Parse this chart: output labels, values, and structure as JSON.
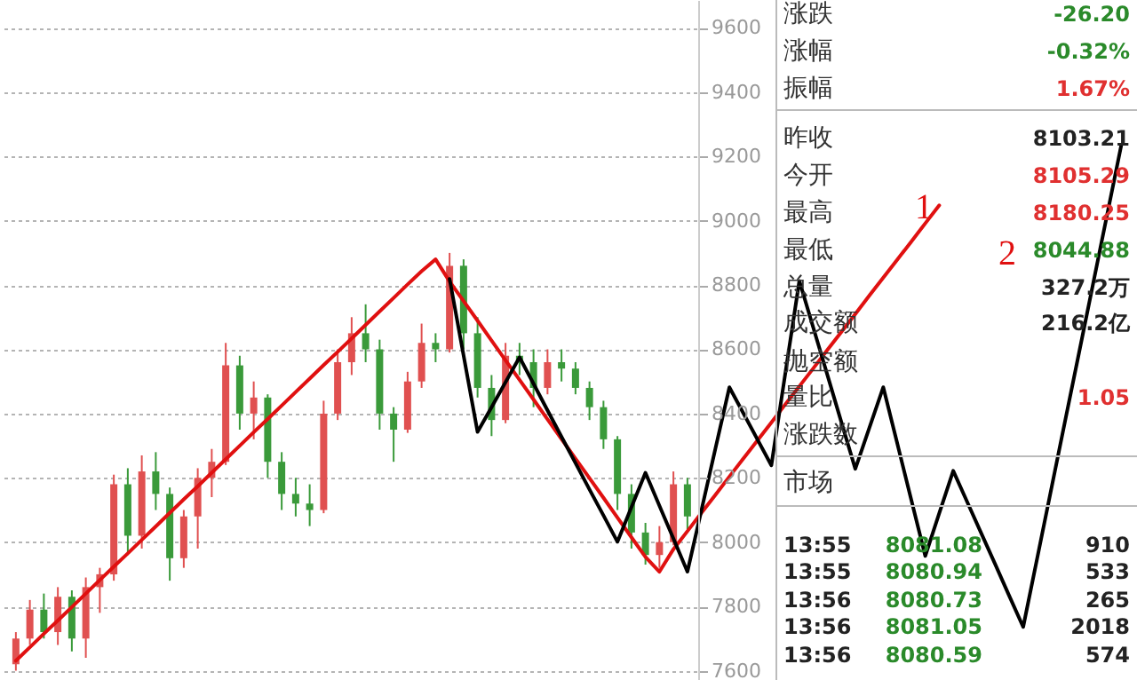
{
  "chart_data": {
    "type": "candlestick",
    "ylim": [
      7571,
      9687
    ],
    "yticks": [
      7600,
      7800,
      8000,
      8200,
      8400,
      8600,
      8800,
      9000,
      9200,
      9400,
      9600
    ],
    "grid": "y",
    "tick_labels": "y",
    "categories": [
      null,
      null,
      null,
      null,
      null,
      null,
      null,
      null,
      null,
      null,
      null,
      null,
      null,
      null,
      null,
      null,
      null,
      null,
      null,
      null,
      null,
      null,
      null,
      null,
      null,
      null,
      null,
      null,
      null,
      null,
      null,
      null,
      null,
      null,
      null,
      null,
      null,
      null,
      null,
      null,
      null,
      null,
      null,
      null,
      null,
      null,
      null,
      null,
      null,
      null,
      null,
      null,
      null,
      null,
      null,
      null,
      null,
      null,
      null,
      null,
      null,
      null,
      null,
      null,
      null,
      null,
      null,
      null,
      null,
      null,
      null,
      null,
      null,
      null,
      null,
      null,
      null,
      null,
      null,
      null
    ],
    "ohlc": [
      [
        7620,
        7720,
        7600,
        7700
      ],
      [
        7700,
        7820,
        7680,
        7790
      ],
      [
        7790,
        7840,
        7700,
        7720
      ],
      [
        7720,
        7860,
        7680,
        7830
      ],
      [
        7830,
        7850,
        7660,
        7700
      ],
      [
        7700,
        7890,
        7640,
        7860
      ],
      [
        7860,
        7920,
        7780,
        7900
      ],
      [
        7900,
        8210,
        7880,
        8180
      ],
      [
        8180,
        8230,
        7960,
        8020
      ],
      [
        8020,
        8270,
        7980,
        8220
      ],
      [
        8220,
        8280,
        8100,
        8150
      ],
      [
        8150,
        8170,
        7880,
        7950
      ],
      [
        7950,
        8100,
        7920,
        8080
      ],
      [
        8080,
        8230,
        7980,
        8200
      ],
      [
        8200,
        8290,
        8140,
        8250
      ],
      [
        8250,
        8620,
        8240,
        8550
      ],
      [
        8550,
        8580,
        8350,
        8400
      ],
      [
        8400,
        8500,
        8320,
        8450
      ],
      [
        8450,
        8460,
        8200,
        8250
      ],
      [
        8250,
        8280,
        8100,
        8150
      ],
      [
        8150,
        8200,
        8080,
        8120
      ],
      [
        8120,
        8180,
        8050,
        8100
      ],
      [
        8100,
        8440,
        8090,
        8400
      ],
      [
        8400,
        8600,
        8380,
        8560
      ],
      [
        8560,
        8700,
        8520,
        8650
      ],
      [
        8650,
        8740,
        8560,
        8600
      ],
      [
        8600,
        8630,
        8350,
        8400
      ],
      [
        8400,
        8420,
        8250,
        8350
      ],
      [
        8350,
        8530,
        8340,
        8500
      ],
      [
        8500,
        8680,
        8480,
        8620
      ],
      [
        8620,
        8650,
        8560,
        8600
      ],
      [
        8600,
        8900,
        8590,
        8860
      ],
      [
        8860,
        8880,
        8600,
        8650
      ],
      [
        8650,
        8700,
        8450,
        8480
      ],
      [
        8480,
        8520,
        8330,
        8380
      ],
      [
        8380,
        8620,
        8370,
        8580
      ],
      [
        8580,
        8620,
        8520,
        8560
      ],
      [
        8560,
        8600,
        8420,
        8480
      ],
      [
        8480,
        8600,
        8460,
        8560
      ],
      [
        8560,
        8600,
        8500,
        8540
      ],
      [
        8540,
        8560,
        8460,
        8480
      ],
      [
        8480,
        8500,
        8380,
        8420
      ],
      [
        8420,
        8440,
        8290,
        8320
      ],
      [
        8320,
        8330,
        8100,
        8150
      ],
      [
        8150,
        8180,
        7980,
        8030
      ],
      [
        8030,
        8060,
        7930,
        7960
      ],
      [
        7960,
        8050,
        7920,
        8000
      ],
      [
        8000,
        8220,
        7990,
        8180
      ],
      [
        8180,
        8200,
        8040,
        8080
      ],
      null,
      null,
      null,
      null,
      null,
      null,
      null,
      null,
      null,
      null,
      null,
      null,
      null,
      null,
      null,
      null,
      null,
      null,
      null,
      null,
      null,
      null,
      null,
      null,
      null,
      null,
      null,
      null,
      null,
      null,
      null
    ],
    "colors": [
      "#e05050",
      "#e05050",
      "#3a9a3a",
      "#e05050",
      "#3a9a3a",
      "#e05050",
      "#e05050",
      "#e05050",
      "#3a9a3a",
      "#e05050",
      "#3a9a3a",
      "#3a9a3a",
      "#e05050",
      "#e05050",
      "#e05050",
      "#e05050",
      "#3a9a3a",
      "#e05050",
      "#3a9a3a",
      "#3a9a3a",
      "#3a9a3a",
      "#3a9a3a",
      "#e05050",
      "#e05050",
      "#e05050",
      "#3a9a3a",
      "#3a9a3a",
      "#3a9a3a",
      "#e05050",
      "#e05050",
      "#3a9a3a",
      "#e05050",
      "#3a9a3a",
      "#3a9a3a",
      "#3a9a3a",
      "#e05050",
      "#3a9a3a",
      "#3a9a3a",
      "#e05050",
      "#3a9a3a",
      "#3a9a3a",
      "#3a9a3a",
      "#3a9a3a",
      "#3a9a3a",
      "#3a9a3a",
      "#3a9a3a",
      "#e05050",
      "#e05050",
      "#3a9a3a",
      null,
      null,
      null,
      null,
      null,
      null,
      null,
      null,
      null,
      null,
      null,
      null,
      null,
      null,
      null,
      null,
      null,
      null,
      null,
      null,
      null,
      null,
      null,
      null,
      null,
      null,
      null,
      null,
      null,
      null,
      null
    ],
    "series": [
      {
        "type": "line",
        "color": "#e01010",
        "values": [
          7631,
          7673,
          7715,
          7756,
          7798,
          7840,
          7882,
          7924,
          7965,
          8007,
          8049,
          8091,
          8133,
          8174,
          8216,
          8258,
          8300,
          8342,
          8383,
          8425,
          8467,
          8509,
          8551,
          8592,
          8634,
          8676,
          8718,
          8760,
          8802,
          8843,
          8880,
          8811,
          8750,
          8689,
          8627,
          8566,
          8505,
          8444,
          8382,
          8321,
          8260,
          8199,
          8138,
          8076,
          8015,
          7954,
          7908,
          7978,
          8034,
          8091,
          8147,
          8204,
          8260,
          8316,
          8372,
          8429,
          8485,
          8541,
          8598,
          8654,
          8710,
          8767,
          8823,
          8879,
          8935,
          8992,
          9048,
          null,
          null,
          null,
          null,
          null,
          null,
          null,
          null,
          null,
          null,
          null,
          null,
          null
        ]
      },
      {
        "type": "line",
        "color": "#000000",
        "values": [
          null,
          null,
          null,
          null,
          null,
          null,
          null,
          null,
          null,
          null,
          null,
          null,
          null,
          null,
          null,
          null,
          null,
          null,
          null,
          null,
          null,
          null,
          null,
          null,
          null,
          null,
          null,
          null,
          null,
          null,
          null,
          8819,
          8581,
          8343,
          8420,
          8498,
          8575,
          8493,
          8410,
          8328,
          8246,
          8164,
          8083,
          8001,
          8109,
          8216,
          8113,
          8011,
          7908,
          8099,
          8291,
          8482,
          8401,
          8320,
          8239,
          8526,
          8813,
          8667,
          8521,
          8374,
          8228,
          8355,
          8482,
          8307,
          8132,
          7957,
          8090,
          8222,
          8125,
          8028,
          7931,
          7833,
          7736,
          7950,
          8164,
          8378,
          8591,
          8805,
          9019,
          9233
        ]
      }
    ],
    "annotations": [
      {
        "text": "1",
        "y": 9040
      },
      "2",
      "涨跌",
      "-26.20",
      "涨幅",
      "-0.32%",
      "振幅",
      "1.67%",
      "昨收",
      "8103.21",
      "今开",
      "8105.29",
      "最高",
      "8180.25",
      "最低",
      "8044.88",
      "总量",
      "327.2万",
      "成交额",
      "216.2亿",
      "抛空额",
      "量比",
      "1.05",
      "涨跌数",
      "市场",
      "13:55",
      "8081.08",
      "910",
      "13:55",
      "8080.94",
      "533",
      "13:56",
      "8080.73",
      "265",
      "13:56",
      "8081.05",
      "2018",
      "13:56",
      "8080.59",
      "574"
    ]
  }
}
